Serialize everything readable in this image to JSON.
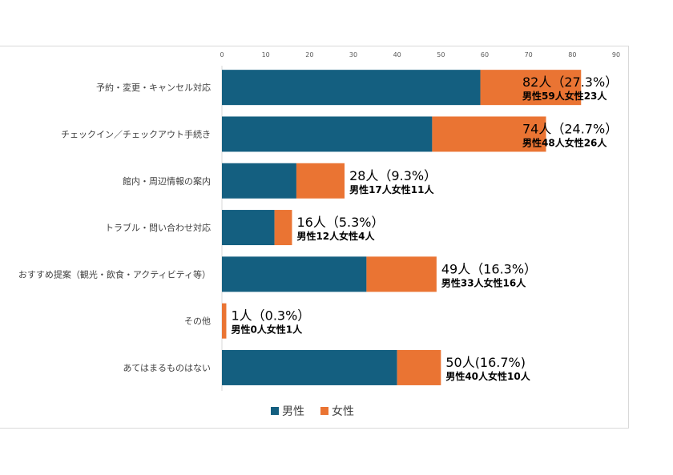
{
  "chart_data": {
    "type": "bar",
    "orientation": "horizontal",
    "stacked": true,
    "categories": [
      "予約・変更・キャンセル対応",
      "チェックイン／チェックアウト手続き",
      "館内・周辺情報の案内",
      "トラブル・問い合わせ対応",
      "おすすめ提案（観光・飲食・アクティビティ等）",
      "その他",
      "あてはまるものはない"
    ],
    "series": [
      {
        "name": "男性",
        "color": "#145f80",
        "values": [
          59,
          48,
          17,
          12,
          33,
          0,
          40
        ]
      },
      {
        "name": "女性",
        "color": "#ea7433",
        "values": [
          23,
          26,
          11,
          4,
          16,
          1,
          10
        ]
      }
    ],
    "data_labels": [
      {
        "total": "82人（27.3%）",
        "detail": "男性59人女性23人"
      },
      {
        "total": "74人（24.7%）",
        "detail": "男性48人女性26人"
      },
      {
        "total": "28人（9.3%）",
        "detail": "男性17人女性11人"
      },
      {
        "total": "16人（5.3%）",
        "detail": "男性12人女性4人"
      },
      {
        "total": "49人（16.3%）",
        "detail": "男性33人女性16人"
      },
      {
        "total": "1人（0.3%）",
        "detail": "男性0人女性1人"
      },
      {
        "total": "50人(16.7%)",
        "detail": "男性40人女性10人"
      }
    ],
    "xlim": [
      0,
      90
    ],
    "xticks": [
      0,
      10,
      20,
      30,
      40,
      50,
      60,
      70,
      80,
      90
    ],
    "xaxis_position": "top",
    "grid": false,
    "legend_position": "bottom"
  }
}
